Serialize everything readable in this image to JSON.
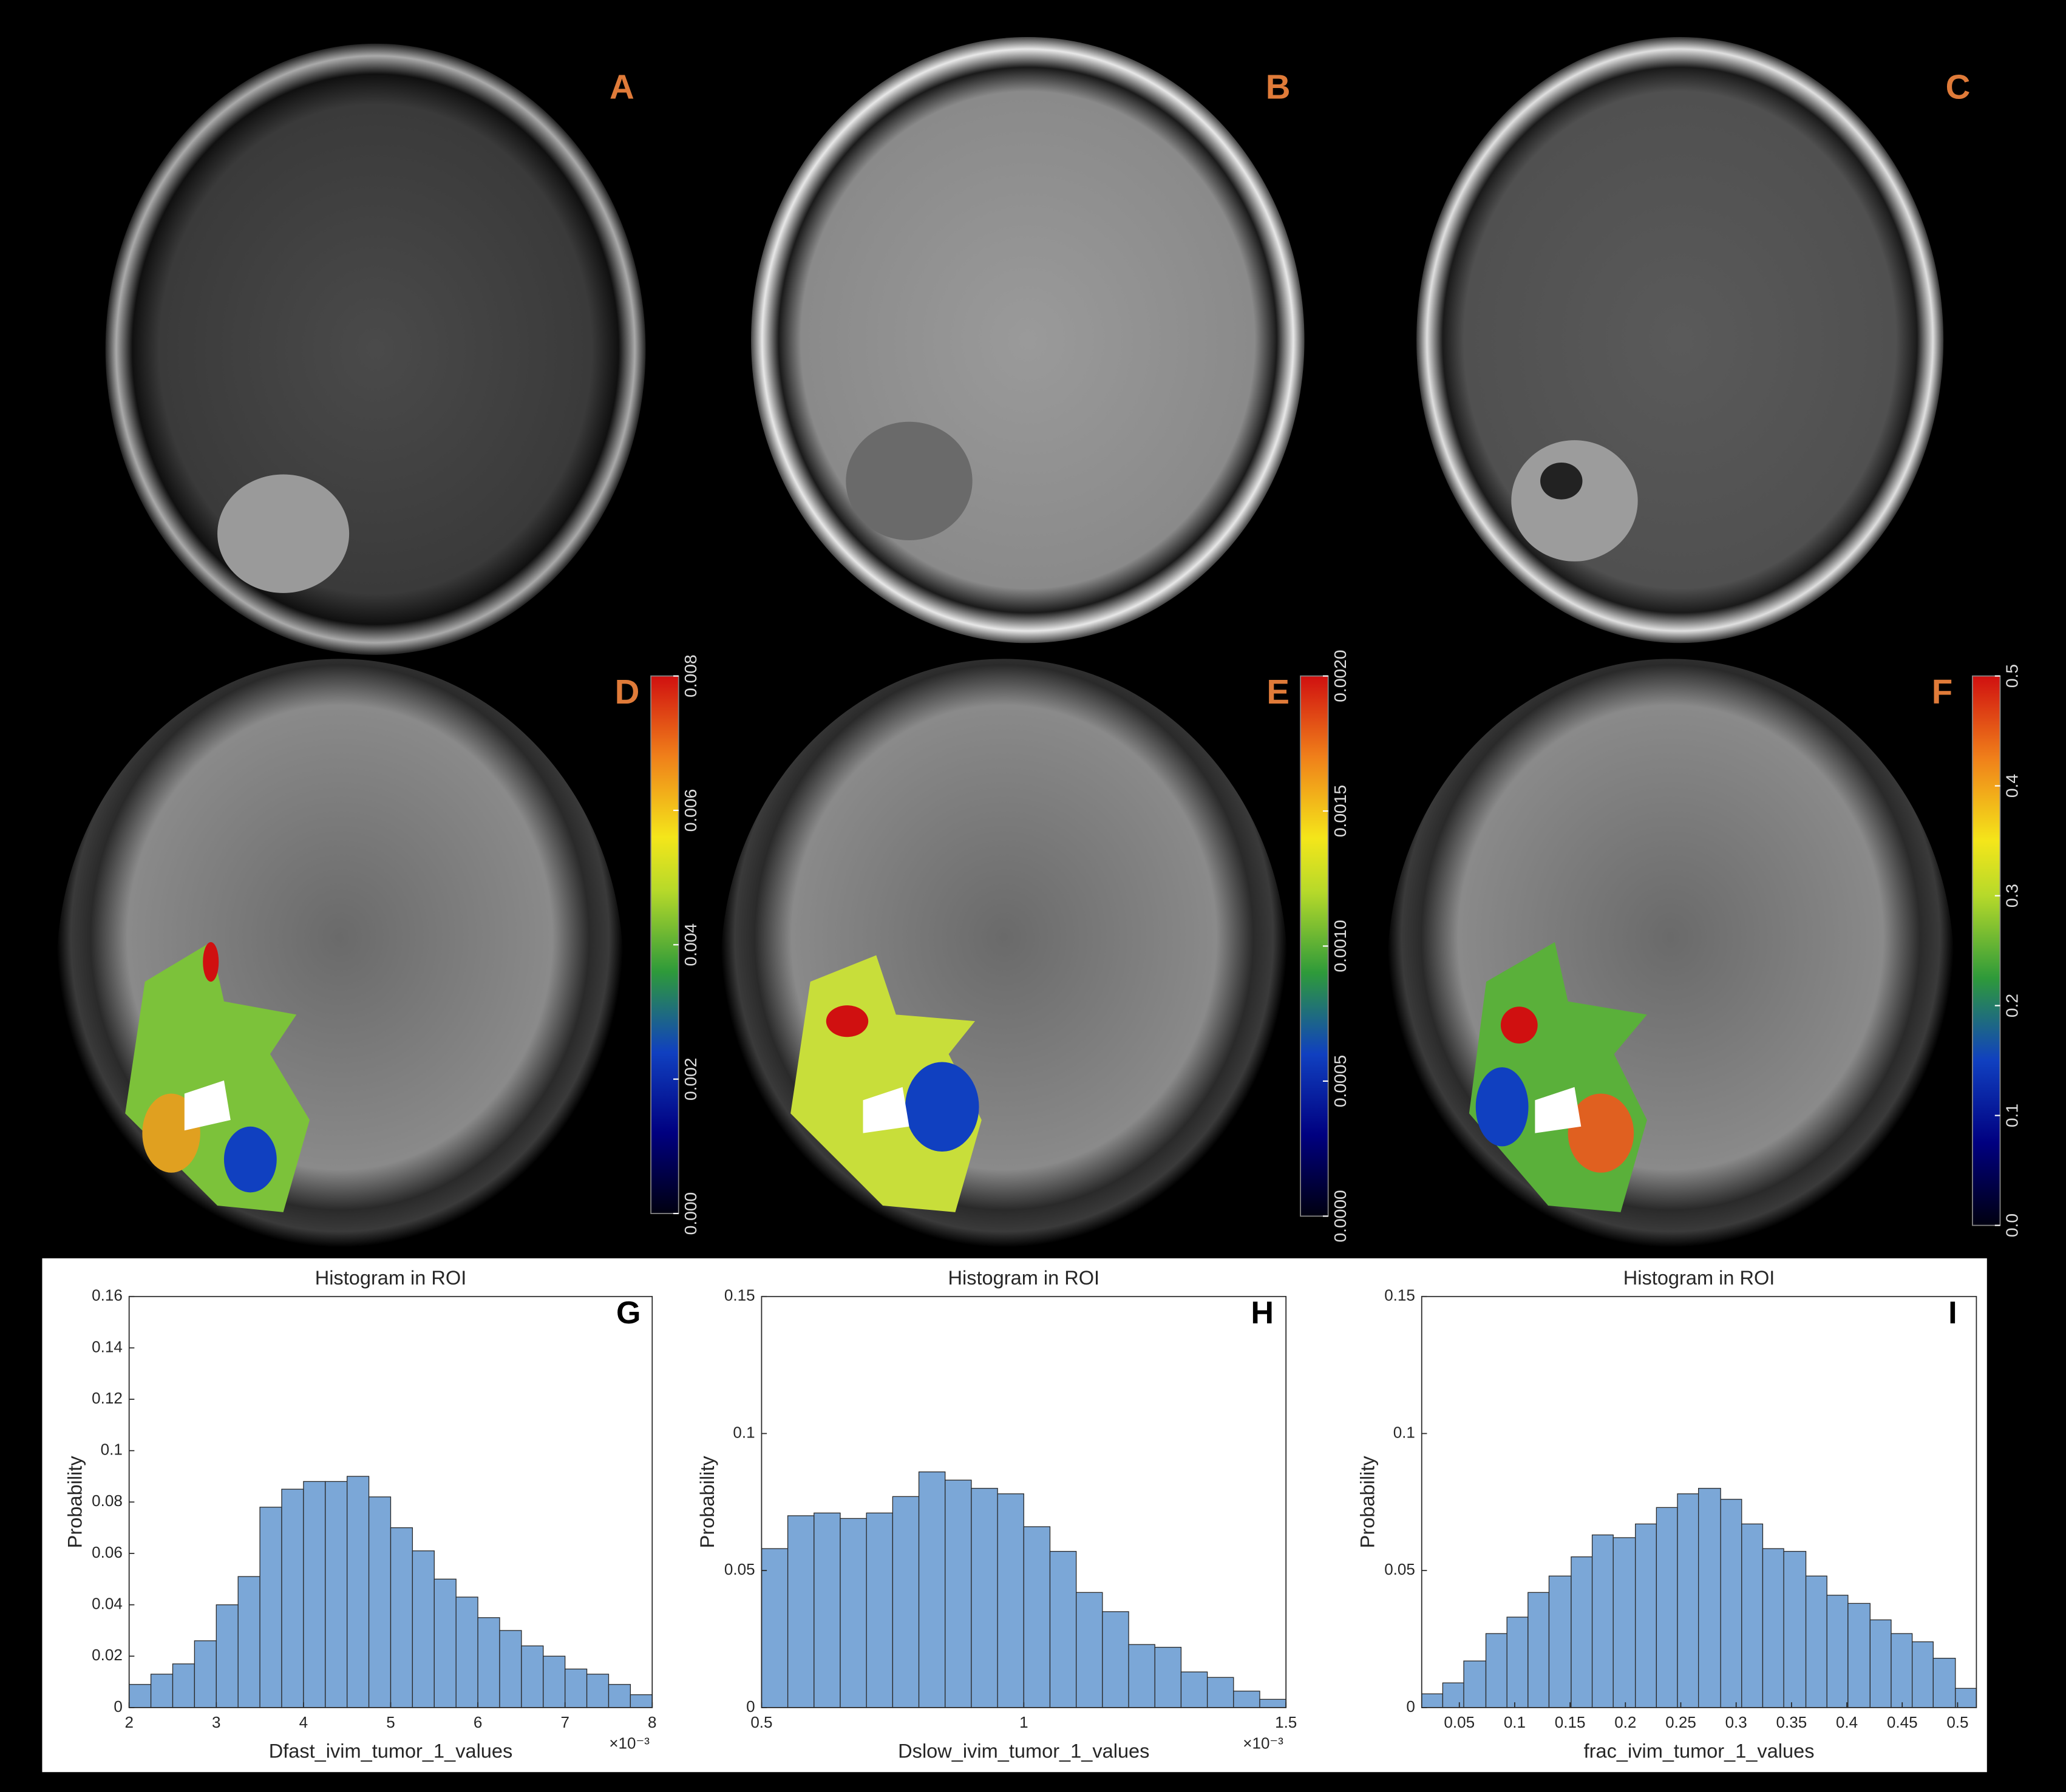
{
  "panels": [
    {
      "label": "A"
    },
    {
      "label": "B"
    },
    {
      "label": "C"
    },
    {
      "label": "D",
      "colorbar": {
        "lim": [
          0,
          0.008
        ],
        "ticks": [
          {
            "value": 0,
            "label": "0.000"
          },
          {
            "value": 0.002,
            "label": "0.002"
          },
          {
            "value": 0.004,
            "label": "0.004"
          },
          {
            "value": 0.006,
            "label": "0.006"
          },
          {
            "value": 0.008,
            "label": "0.008"
          }
        ]
      }
    },
    {
      "label": "E",
      "colorbar": {
        "lim": [
          0,
          0.002
        ],
        "ticks": [
          {
            "value": 0,
            "label": "0.0000"
          },
          {
            "value": 0.0005,
            "label": "0.0005"
          },
          {
            "value": 0.001,
            "label": "0.0010"
          },
          {
            "value": 0.0015,
            "label": "0.0015"
          },
          {
            "value": 0.002,
            "label": "0.0020"
          }
        ]
      }
    },
    {
      "label": "F",
      "colorbar": {
        "lim": [
          0,
          0.5
        ],
        "ticks": [
          {
            "value": 0,
            "label": "0.0"
          },
          {
            "value": 0.1,
            "label": "0.1"
          },
          {
            "value": 0.2,
            "label": "0.2"
          },
          {
            "value": 0.3,
            "label": "0.3"
          },
          {
            "value": 0.4,
            "label": "0.4"
          },
          {
            "value": 0.5,
            "label": "0.5"
          }
        ]
      }
    }
  ],
  "chart_data": [
    {
      "type": "histogram",
      "title": "Histogram in ROI",
      "panel": "G",
      "xlabel": "Dfast_ivim_tumor_1_values",
      "ylabel": "Probability",
      "x_exponent": "×10⁻³",
      "bins": [
        2,
        2.25,
        2.5,
        2.75,
        3,
        3.25,
        3.5,
        3.75,
        4,
        4.25,
        4.5,
        4.75,
        5,
        5.25,
        5.5,
        5.75,
        6,
        6.25,
        6.5,
        6.75,
        7,
        7.25,
        7.5,
        7.75,
        8
      ],
      "values": [
        0.009,
        0.013,
        0.017,
        0.026,
        0.04,
        0.051,
        0.078,
        0.085,
        0.088,
        0.088,
        0.09,
        0.082,
        0.07,
        0.061,
        0.05,
        0.043,
        0.035,
        0.03,
        0.024,
        0.02,
        0.015,
        0.013,
        0.009,
        0.005
      ],
      "color": "#7ba7d7",
      "xlim": [
        2,
        8
      ],
      "ylim": [
        0,
        0.16
      ],
      "xticks": [
        2,
        3,
        4,
        5,
        6,
        7,
        8
      ],
      "yticks": [
        0,
        0.02,
        0.04,
        0.06,
        0.08,
        0.1,
        0.12,
        0.14,
        0.16
      ]
    },
    {
      "type": "histogram",
      "title": "Histogram in ROI",
      "panel": "H",
      "xlabel": "Dslow_ivim_tumor_1_values",
      "ylabel": "Probability",
      "x_exponent": "×10⁻³",
      "bins": [
        0.5,
        0.55,
        0.6,
        0.65,
        0.7,
        0.75,
        0.8,
        0.85,
        0.9,
        0.95,
        1,
        1.05,
        1.1,
        1.15,
        1.2,
        1.25,
        1.3,
        1.35,
        1.4,
        1.45,
        1.5
      ],
      "values": [
        0.058,
        0.07,
        0.071,
        0.069,
        0.071,
        0.077,
        0.086,
        0.083,
        0.08,
        0.078,
        0.066,
        0.057,
        0.042,
        0.035,
        0.023,
        0.022,
        0.013,
        0.011,
        0.006,
        0.003
      ],
      "color": "#7ba7d7",
      "xlim": [
        0.5,
        1.5
      ],
      "ylim": [
        0,
        0.15
      ],
      "xticks": [
        0.5,
        1,
        1.5
      ],
      "yticks": [
        0,
        0.05,
        0.1,
        0.15
      ]
    },
    {
      "type": "histogram",
      "title": "Histogram in ROI",
      "panel": "I",
      "xlabel": "frac_ivim_tumor_1_values",
      "ylabel": "Probability",
      "bins": [
        0.016,
        0.035,
        0.054,
        0.074,
        0.093,
        0.112,
        0.131,
        0.151,
        0.17,
        0.189,
        0.209,
        0.228,
        0.247,
        0.266,
        0.286,
        0.305,
        0.324,
        0.343,
        0.363,
        0.382,
        0.401,
        0.421,
        0.44,
        0.459,
        0.478,
        0.498,
        0.517
      ],
      "values": [
        0.005,
        0.009,
        0.017,
        0.027,
        0.033,
        0.042,
        0.048,
        0.055,
        0.063,
        0.062,
        0.067,
        0.073,
        0.078,
        0.08,
        0.076,
        0.067,
        0.058,
        0.057,
        0.048,
        0.041,
        0.038,
        0.032,
        0.027,
        0.024,
        0.018,
        0.007
      ],
      "color": "#7ba7d7",
      "xlim": [
        0.016,
        0.517
      ],
      "ylim": [
        0,
        0.15
      ],
      "xticks": [
        0.05,
        0.1,
        0.15,
        0.2,
        0.25,
        0.3,
        0.35,
        0.4,
        0.45,
        0.5
      ],
      "yticks": [
        0,
        0.05,
        0.1,
        0.15
      ]
    }
  ]
}
